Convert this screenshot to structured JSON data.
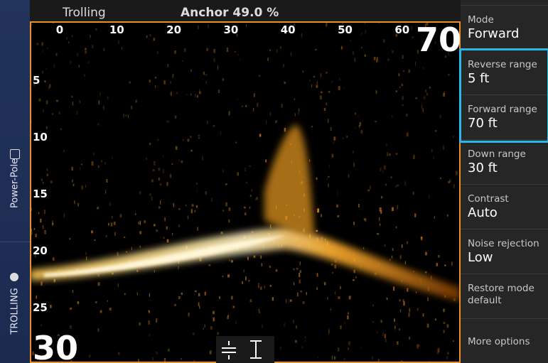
{
  "status_bar": {
    "mode": "Trolling",
    "anchor": "Anchor 49.0 %"
  },
  "sidebar": {
    "items": [
      "Power-Pole",
      "TROLLING"
    ]
  },
  "sonar": {
    "range_scale": [
      "0",
      "10",
      "20",
      "30",
      "40",
      "50",
      "60"
    ],
    "depth_scale": [
      "5",
      "10",
      "15",
      "20",
      "25"
    ],
    "forward_range": "70",
    "down_range": "30"
  },
  "menu": {
    "items": [
      {
        "label": "Mode",
        "value": "Forward"
      },
      {
        "label": "Reverse range",
        "value": "5 ft"
      },
      {
        "label": "Forward range",
        "value": "70 ft"
      },
      {
        "label": "Down range",
        "value": "30 ft"
      },
      {
        "label": "Contrast",
        "value": "Auto"
      },
      {
        "label": "Noise rejection",
        "value": "Low"
      },
      {
        "label": "Restore mode default"
      },
      {
        "label": "More options"
      }
    ]
  }
}
